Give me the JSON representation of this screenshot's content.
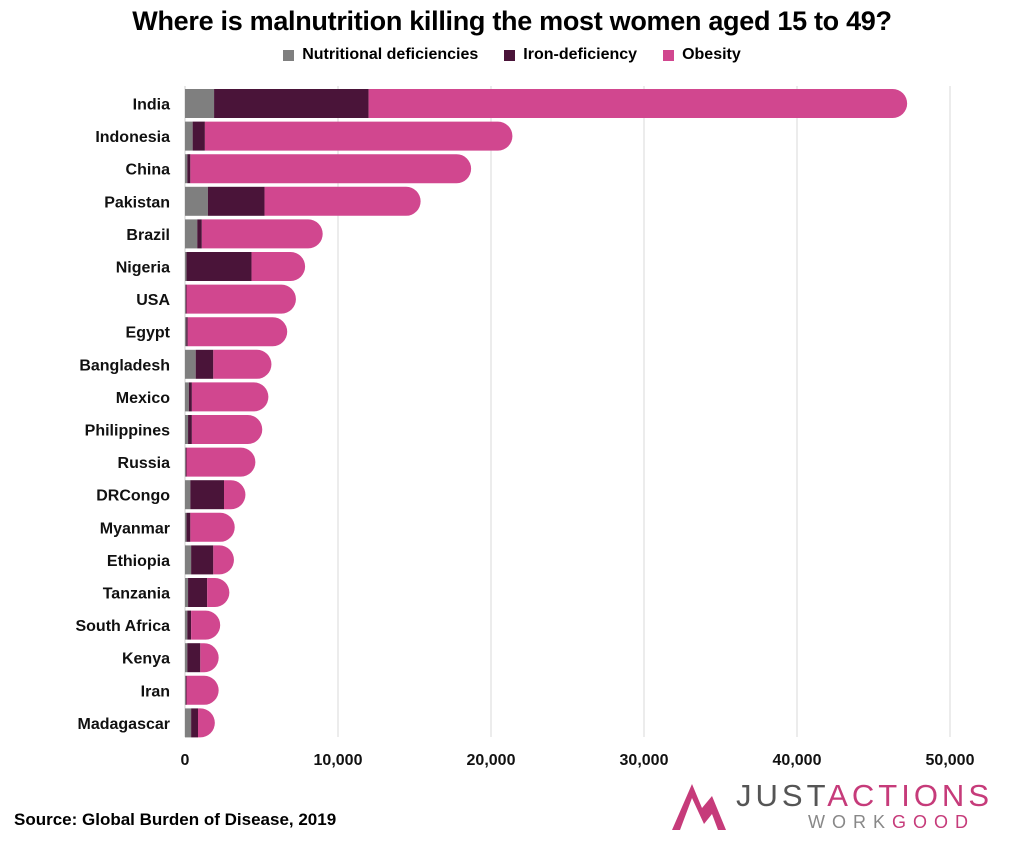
{
  "chart_data": {
    "type": "bar",
    "orientation": "horizontal",
    "stacked": true,
    "title": "Where is malnutrition killing the most women aged 15 to 49?",
    "categories": [
      "India",
      "Indonesia",
      "China",
      "Pakistan",
      "Brazil",
      "Nigeria",
      "USA",
      "Egypt",
      "Bangladesh",
      "Mexico",
      "Philippines",
      "Russia",
      "DRCongo",
      "Myanmar",
      "Ethiopia",
      "Tanzania",
      "South Africa",
      "Kenya",
      "Iran",
      "Madagascar"
    ],
    "series": [
      {
        "name": "Nutritional deficiencies",
        "color": "#7f7f7f",
        "values": [
          1900,
          500,
          150,
          1500,
          800,
          100,
          50,
          80,
          700,
          250,
          200,
          50,
          350,
          100,
          400,
          200,
          150,
          150,
          50,
          400
        ]
      },
      {
        "name": "Iron-deficiency",
        "color": "#4a1439",
        "values": [
          10100,
          800,
          200,
          3700,
          300,
          4250,
          50,
          100,
          1150,
          200,
          250,
          50,
          2200,
          250,
          1450,
          1250,
          250,
          850,
          50,
          450
        ]
      },
      {
        "name": "Obesity",
        "color": "#d1478f",
        "values": [
          35200,
          20100,
          18350,
          10200,
          7900,
          3500,
          7150,
          6500,
          3800,
          5000,
          4600,
          4500,
          1400,
          2900,
          1350,
          1450,
          1900,
          1200,
          2100,
          1100
        ]
      }
    ],
    "xlim": [
      0,
      50000
    ],
    "xticks": [
      0,
      10000,
      20000,
      30000,
      40000,
      50000
    ],
    "xtick_labels": [
      "0",
      "10,000",
      "20,000",
      "30,000",
      "40,000",
      "50,000"
    ],
    "xlabel": "",
    "ylabel": "",
    "grid": "vertical",
    "legend_position": "top"
  },
  "source": "Source: Global Burden of Disease, 2019",
  "logo": {
    "line1_a": "JUST",
    "line1_b": "ACTIONS",
    "line2_a": "WORK",
    "line2_b": "GOOD"
  }
}
